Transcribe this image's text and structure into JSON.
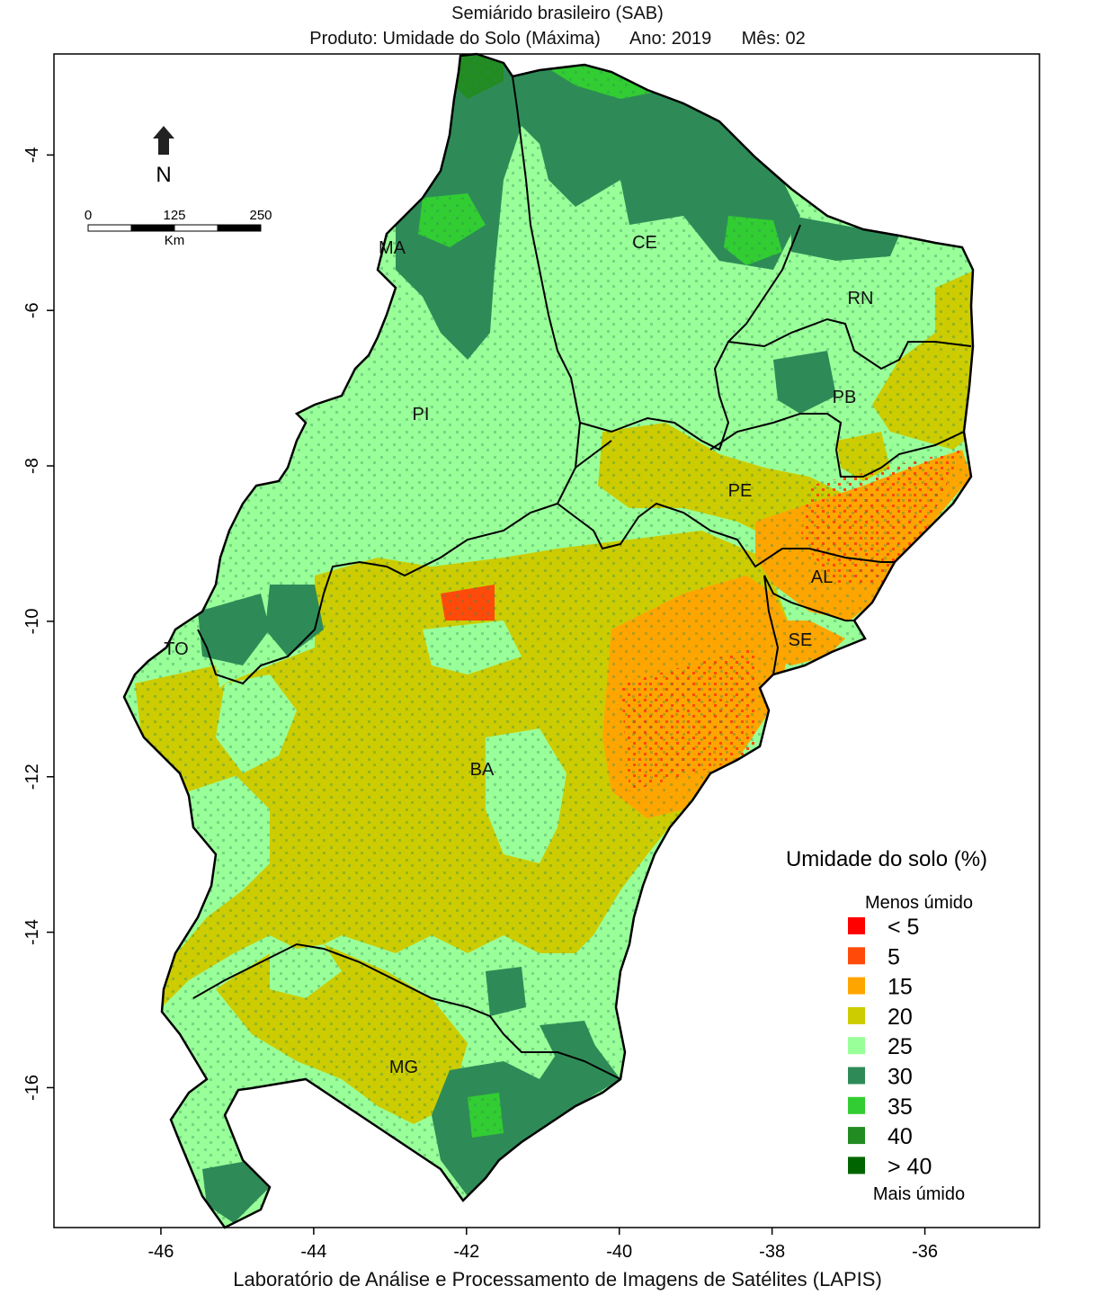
{
  "title": "Semiárido brasileiro (SAB)",
  "subtitle": {
    "product": "Produto: Umidade do Solo (Máxima)",
    "year": "Ano:  2019",
    "month": "Mês:  02"
  },
  "footer": "Laboratório de Análise e Processamento de Imagens de Satélites (LAPIS)",
  "axes": {
    "x_ticks": [
      "-46",
      "-44",
      "-42",
      "-40",
      "-38",
      "-36"
    ],
    "y_ticks": [
      "-4",
      "-6",
      "-8",
      "-10",
      "-12",
      "-14",
      "-16"
    ],
    "x_range": [
      -47.4,
      -34.5
    ],
    "y_range": [
      -17.8,
      -2.7
    ]
  },
  "north_arrow": {
    "label": "N"
  },
  "scale_bar": {
    "ticks": [
      "0",
      "125",
      "250"
    ],
    "unit": "Km"
  },
  "states": {
    "MA": "MA",
    "CE": "CE",
    "RN": "RN",
    "PI": "PI",
    "PB": "PB",
    "PE": "PE",
    "AL": "AL",
    "SE": "SE",
    "TO": "TO",
    "BA": "BA",
    "MG": "MG"
  },
  "legend": {
    "title": "Umidade do solo (%)",
    "top_label": "Menos úmido",
    "bottom_label": "Mais úmido",
    "items": [
      {
        "label": "< 5",
        "color": "#ff0000"
      },
      {
        "label": "5",
        "color": "#ff4a0a"
      },
      {
        "label": "15",
        "color": "#ffa500"
      },
      {
        "label": "20",
        "color": "#cccc00"
      },
      {
        "label": "25",
        "color": "#99ff99"
      },
      {
        "label": "30",
        "color": "#2e8b57"
      },
      {
        "label": "35",
        "color": "#32cd32"
      },
      {
        "label": "40",
        "color": "#228b22"
      },
      {
        "label": "> 40",
        "color": "#006400"
      }
    ]
  },
  "colors": {
    "lt25": "#99ff99",
    "c20": "#cccc00",
    "c15": "#ffa500",
    "c5": "#ff4a0a",
    "c30": "#2e8b57",
    "c35": "#32cd32",
    "c40": "#228b22",
    "cg40": "#006400"
  }
}
